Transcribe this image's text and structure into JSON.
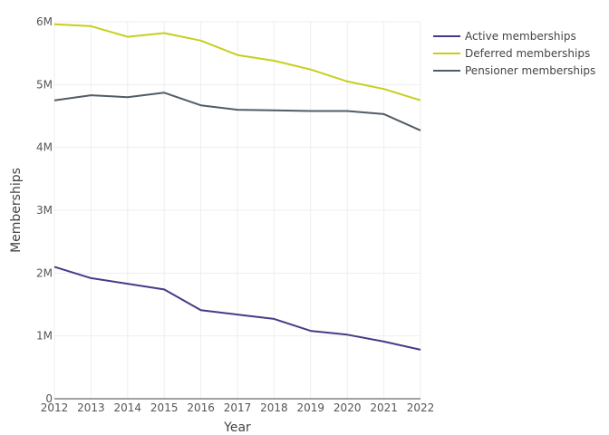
{
  "chart_data": {
    "type": "line",
    "title": "",
    "xlabel": "Year",
    "ylabel": "Memberships",
    "x": [
      2012,
      2013,
      2014,
      2015,
      2016,
      2017,
      2018,
      2019,
      2020,
      2021,
      2022
    ],
    "xlim": [
      2012,
      2022
    ],
    "ylim": [
      0,
      6000000
    ],
    "y_ticks": [
      {
        "value": 0,
        "label": "0"
      },
      {
        "value": 1000000,
        "label": "1M"
      },
      {
        "value": 2000000,
        "label": "2M"
      },
      {
        "value": 3000000,
        "label": "3M"
      },
      {
        "value": 4000000,
        "label": "4M"
      },
      {
        "value": 5000000,
        "label": "5M"
      },
      {
        "value": 6000000,
        "label": "6M"
      }
    ],
    "grid": true,
    "legend_position": "top-right",
    "series": [
      {
        "name": "Active memberships",
        "color": "#463b87",
        "values": [
          2100000,
          1920000,
          1830000,
          1740000,
          1410000,
          1340000,
          1270000,
          1080000,
          1020000,
          910000,
          780000
        ]
      },
      {
        "name": "Deferred memberships",
        "color": "#c7cf1b",
        "values": [
          5960000,
          5930000,
          5760000,
          5820000,
          5700000,
          5470000,
          5380000,
          5240000,
          5050000,
          4930000,
          4750000
        ]
      },
      {
        "name": "Pensioner memberships",
        "color": "#525c68",
        "values": [
          4750000,
          4830000,
          4800000,
          4870000,
          4670000,
          4600000,
          4590000,
          4580000,
          4580000,
          4530000,
          4270000
        ]
      }
    ]
  }
}
